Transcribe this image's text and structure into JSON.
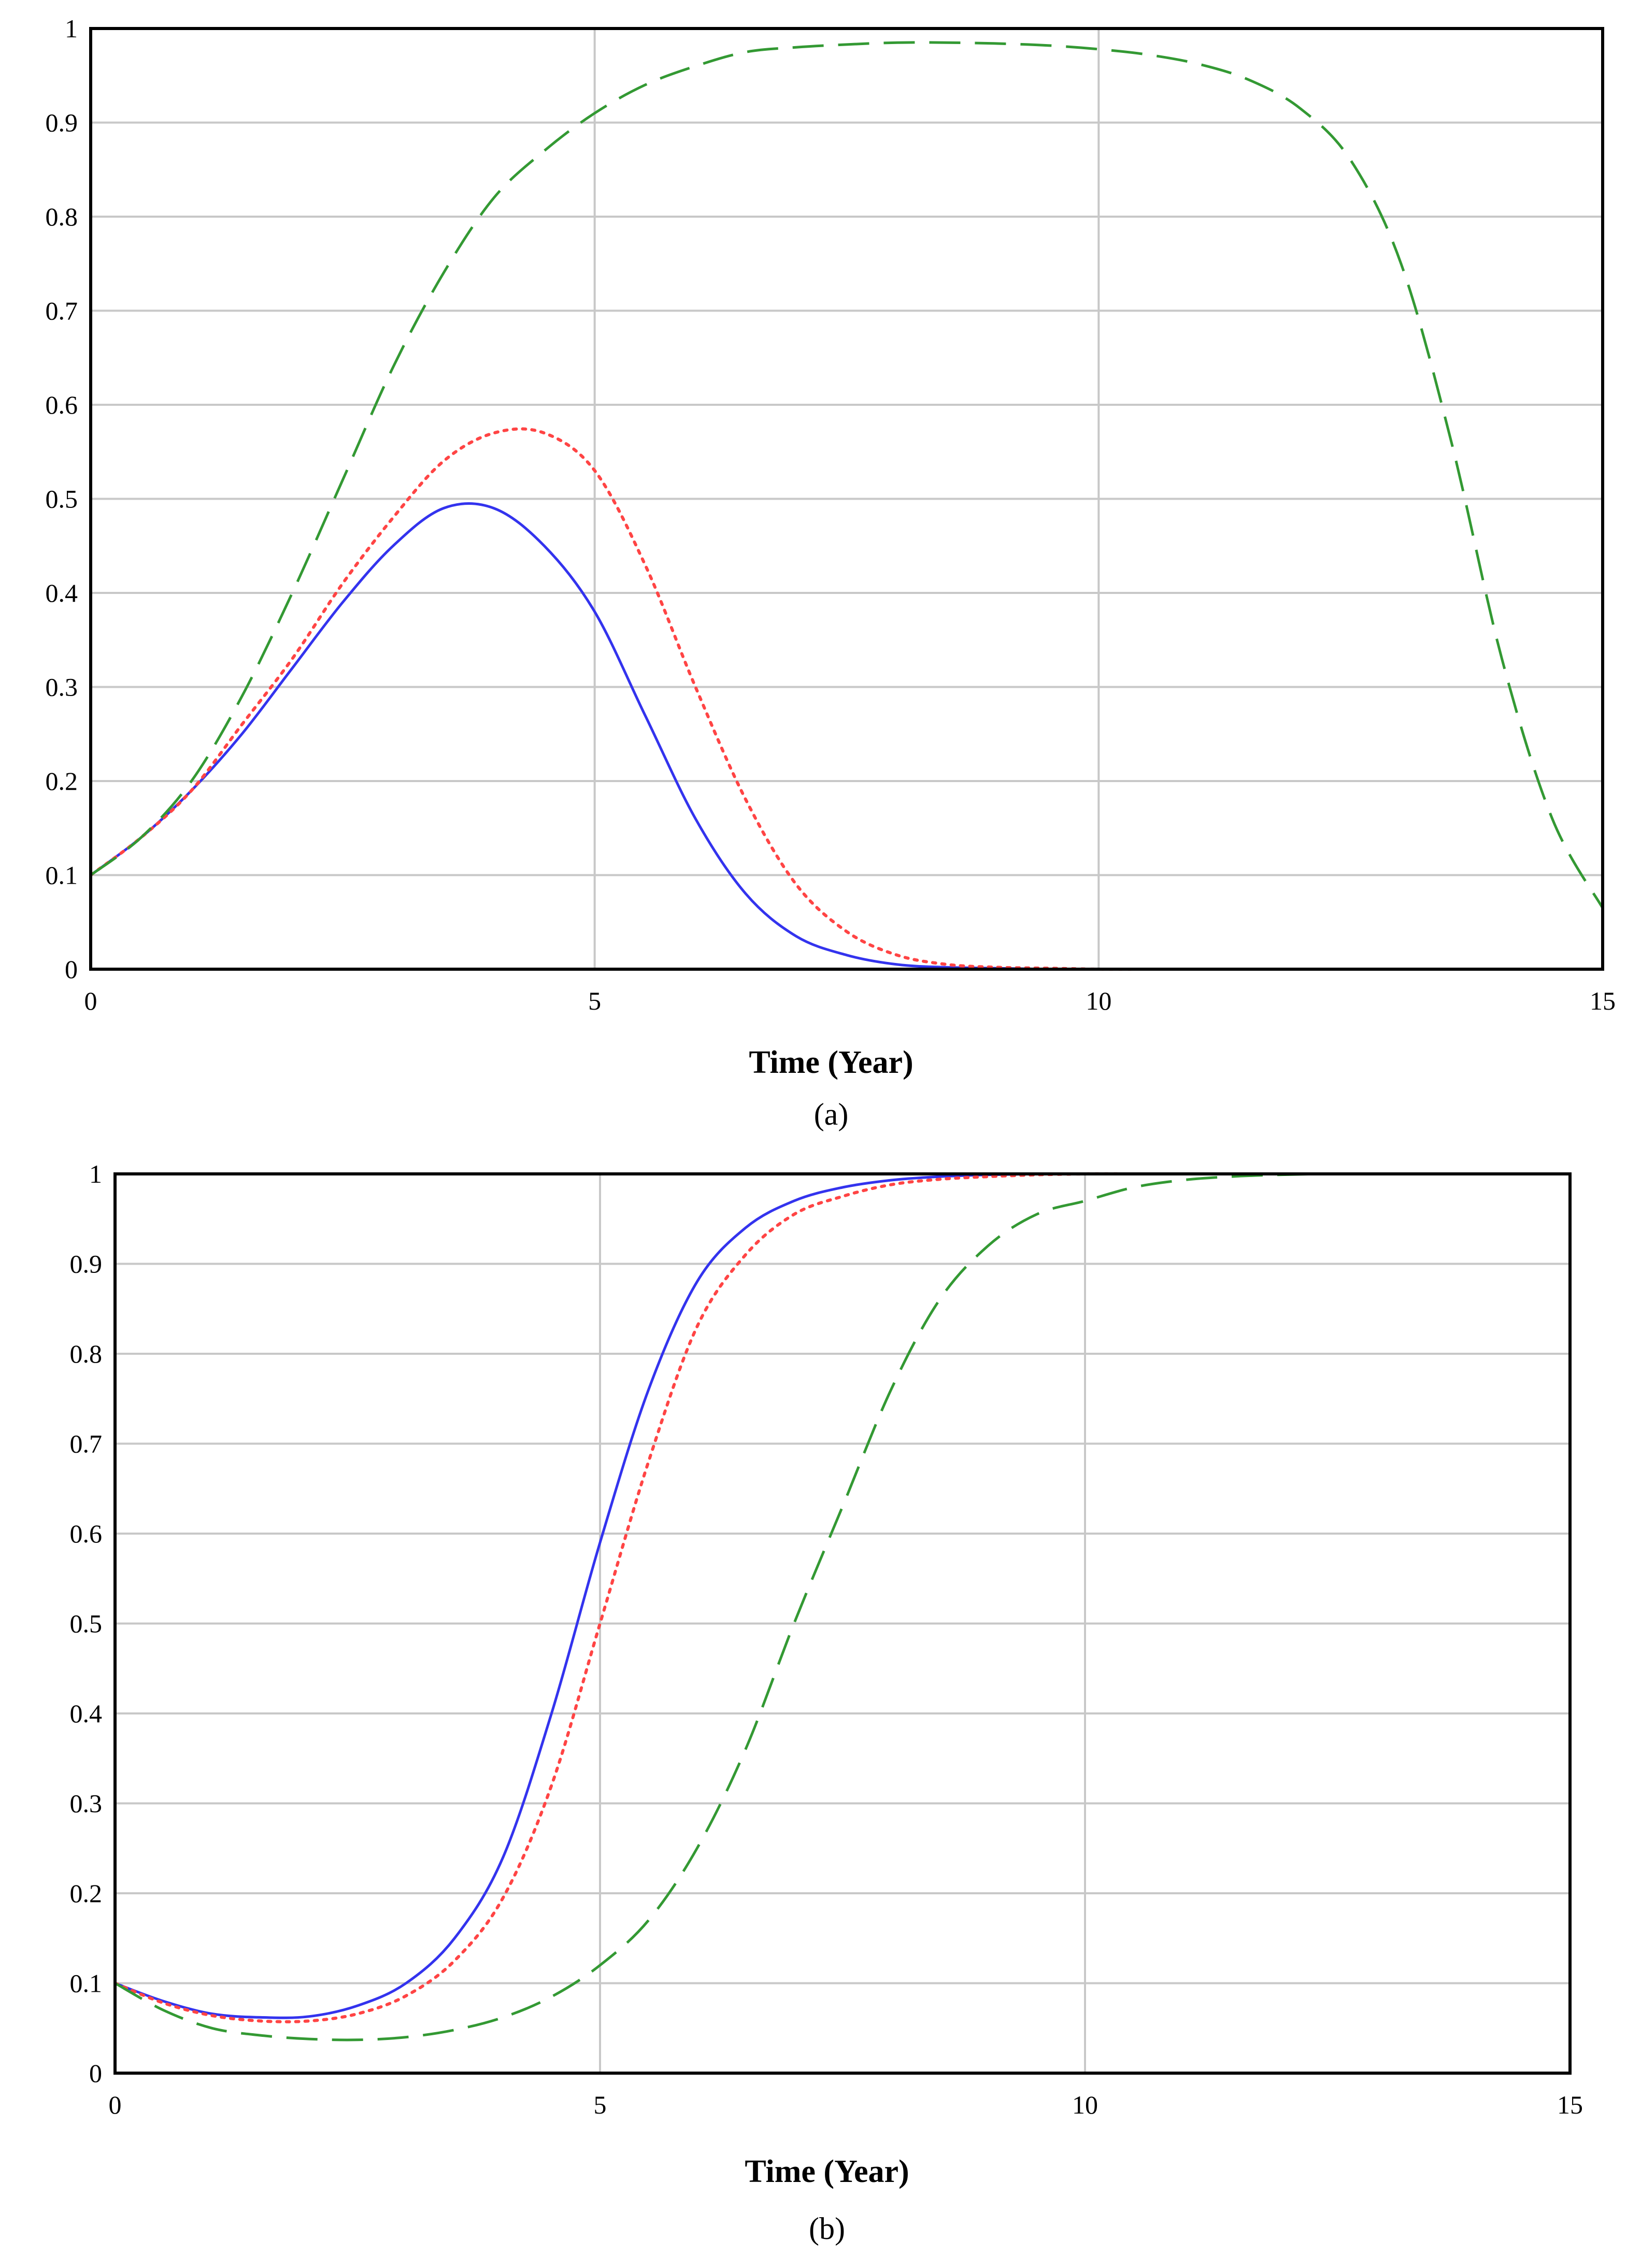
{
  "chart_data": [
    {
      "type": "line",
      "panel": "a",
      "xlabel": "Time (Year)",
      "xlim": [
        0,
        15
      ],
      "ylim": [
        0,
        1
      ],
      "xticks": [
        "0",
        "5",
        "10",
        "15"
      ],
      "yticks": [
        "0",
        "0.1",
        "0.2",
        "0.3",
        "0.4",
        "0.5",
        "0.6",
        "0.7",
        "0.8",
        "0.9",
        "1"
      ],
      "grid": true,
      "x": [
        0,
        0.5,
        1,
        1.5,
        2,
        2.5,
        3,
        3.5,
        4,
        4.5,
        5,
        5.5,
        6,
        6.5,
        7,
        7.5,
        8,
        8.5,
        9,
        9.5,
        10,
        10.5,
        11,
        11.5,
        12,
        12.5,
        13,
        13.5,
        14,
        14.5,
        15
      ],
      "series": [
        {
          "color": "#3333ee",
          "style": "solid",
          "values": [
            0.1,
            0.14,
            0.19,
            0.25,
            0.32,
            0.39,
            0.45,
            0.49,
            0.49,
            0.45,
            0.38,
            0.27,
            0.16,
            0.08,
            0.035,
            0.015,
            0.005,
            0.002,
            0.001,
            0,
            0,
            0,
            0,
            0,
            0,
            0,
            0,
            0,
            0,
            0,
            0
          ]
        },
        {
          "color": "#ff4444",
          "style": "dotted",
          "values": [
            0.1,
            0.14,
            0.19,
            0.26,
            0.33,
            0.41,
            0.48,
            0.54,
            0.57,
            0.57,
            0.53,
            0.43,
            0.3,
            0.18,
            0.09,
            0.04,
            0.015,
            0.005,
            0.002,
            0.001,
            0,
            0,
            0,
            0,
            0,
            0,
            0,
            0,
            0,
            0,
            0
          ]
        },
        {
          "color": "#339933",
          "style": "dashed",
          "values": [
            0.1,
            0.14,
            0.2,
            0.29,
            0.4,
            0.52,
            0.64,
            0.74,
            0.82,
            0.87,
            0.91,
            0.94,
            0.96,
            0.975,
            0.98,
            0.983,
            0.985,
            0.985,
            0.984,
            0.982,
            0.978,
            0.972,
            0.962,
            0.945,
            0.915,
            0.86,
            0.75,
            0.56,
            0.33,
            0.16,
            0.065
          ]
        }
      ],
      "panel_label": "(a)"
    },
    {
      "type": "line",
      "panel": "b",
      "xlabel": "Time (Year)",
      "xlim": [
        0,
        15
      ],
      "ylim": [
        0,
        1
      ],
      "xticks": [
        "0",
        "5",
        "10",
        "15"
      ],
      "yticks": [
        "0",
        "0.1",
        "0.2",
        "0.3",
        "0.4",
        "0.5",
        "0.6",
        "0.7",
        "0.8",
        "0.9",
        "1"
      ],
      "grid": true,
      "x": [
        0,
        0.5,
        1,
        1.5,
        2,
        2.5,
        3,
        3.5,
        4,
        4.5,
        5,
        5.5,
        6,
        6.5,
        7,
        7.5,
        8,
        8.5,
        9,
        9.5,
        10,
        10.5,
        11,
        11.5,
        12,
        12.5,
        13,
        13.5,
        14,
        14.5,
        15
      ],
      "series": [
        {
          "color": "#3333ee",
          "style": "solid",
          "values": [
            0.1,
            0.08,
            0.066,
            0.062,
            0.063,
            0.075,
            0.1,
            0.15,
            0.24,
            0.4,
            0.59,
            0.76,
            0.88,
            0.94,
            0.97,
            0.985,
            0.993,
            0.997,
            0.999,
            1,
            1,
            1,
            1,
            1,
            1,
            1,
            1,
            1,
            1,
            1,
            1
          ]
        },
        {
          "color": "#ff4444",
          "style": "dotted",
          "values": [
            0.1,
            0.078,
            0.064,
            0.058,
            0.058,
            0.066,
            0.086,
            0.125,
            0.195,
            0.32,
            0.5,
            0.68,
            0.83,
            0.91,
            0.955,
            0.975,
            0.988,
            0.994,
            0.997,
            0.999,
            1,
            1,
            1,
            1,
            1,
            1,
            1,
            1,
            1,
            1,
            1
          ]
        },
        {
          "color": "#339933",
          "style": "dashed",
          "values": [
            0.1,
            0.07,
            0.05,
            0.042,
            0.038,
            0.037,
            0.04,
            0.048,
            0.062,
            0.085,
            0.12,
            0.17,
            0.25,
            0.36,
            0.5,
            0.63,
            0.76,
            0.86,
            0.92,
            0.955,
            0.97,
            0.985,
            0.993,
            0.997,
            0.999,
            1,
            1,
            1,
            1,
            1,
            1
          ]
        }
      ],
      "panel_label": "(b)"
    }
  ]
}
